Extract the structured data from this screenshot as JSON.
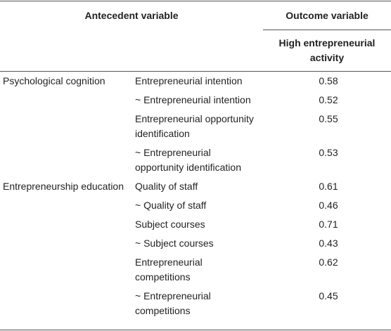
{
  "header": {
    "antecedent": "Antecedent variable",
    "outcome": "Outcome variable",
    "outcome_sub": "High entrepreneurial activity"
  },
  "groups": [
    {
      "label": "Psychological cognition",
      "rows": [
        {
          "variable": "Entrepreneurial intention",
          "value": "0.58"
        },
        {
          "variable": "~ Entrepreneurial intention",
          "value": "0.52"
        },
        {
          "variable": "Entrepreneurial opportunity identification",
          "value": "0.55"
        },
        {
          "variable": "~ Entrepreneurial opportunity identification",
          "value": "0.53"
        }
      ]
    },
    {
      "label": "Entrepreneurship education",
      "rows": [
        {
          "variable": "Quality of staff",
          "value": "0.61"
        },
        {
          "variable": "~ Quality of staff",
          "value": "0.46"
        },
        {
          "variable": "Subject courses",
          "value": "0.71"
        },
        {
          "variable": "~ Subject courses",
          "value": "0.43"
        },
        {
          "variable": "Entrepreneurial competitions",
          "value": "0.62"
        },
        {
          "variable": "~ Entrepreneurial competitions",
          "value": "0.45"
        }
      ]
    }
  ]
}
